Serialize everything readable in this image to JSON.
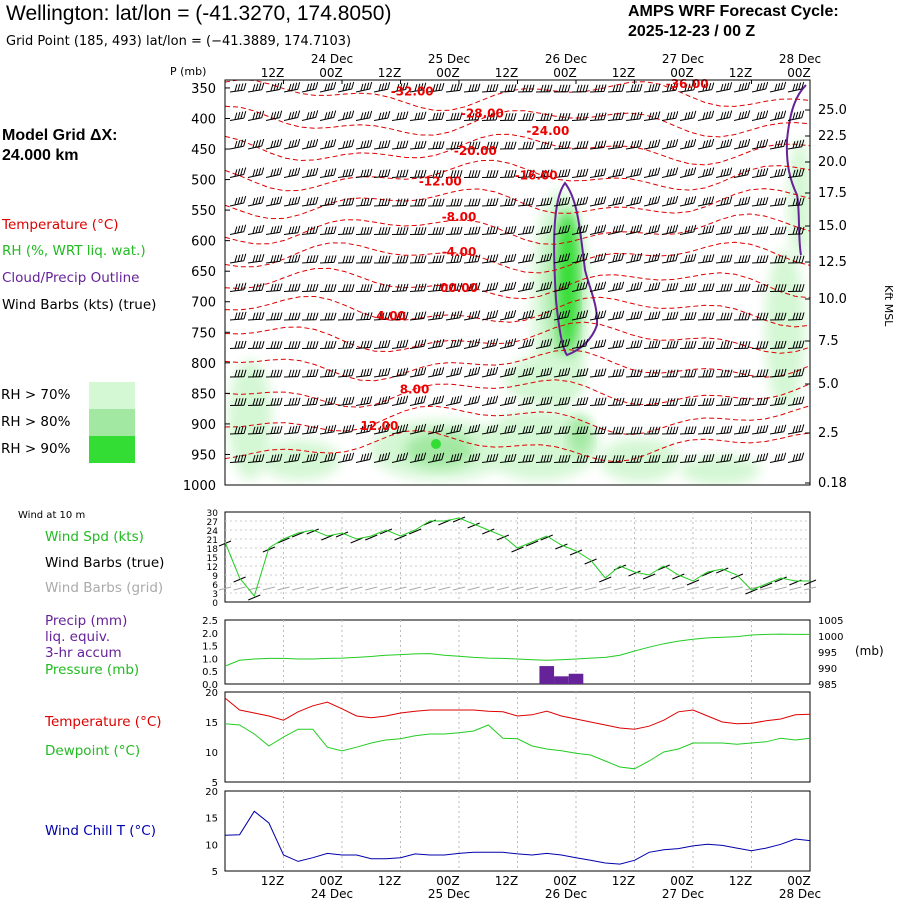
{
  "header": {
    "title": "Wellington:  lat/lon = (-41.3270, 174.8050)",
    "grid_point": "Grid Point (185, 493) lat/lon = (−41.3889, 174.7103)",
    "cycle_label": "AMPS WRF Forecast Cycle:",
    "cycle_value": "2025-12-23 / 00  Z"
  },
  "legend": {
    "model_grid_label": "Model Grid ΔX:",
    "model_grid_value": " 24.000 km",
    "temperature": "Temperature (°C)",
    "rh": "RH (%, WRT liq. wat.)",
    "cloud": "Cloud/Precip Outline",
    "wind_barbs": "Wind Barbs (kts) (true)",
    "rh_keys": [
      "RH > 70%",
      "RH > 80%",
      "RH > 90%"
    ],
    "rh_colors": [
      "#d4f7d4",
      "#a2e8a2",
      "#33dd33"
    ]
  },
  "colors": {
    "temperature": "#dd0000",
    "rh_line": "#22cc22",
    "cloud": "#662299",
    "wind_chill": "#0000aa",
    "barb_true": "#000000",
    "barb_grid": "#aaaaaa"
  },
  "chart_data": [
    {
      "type": "heatmap",
      "ylabel": "P (mb)",
      "y2label": "Kft MSL",
      "time_ticks": [
        "12Z",
        "00Z",
        "12Z",
        "00Z",
        "12Z",
        "00Z",
        "12Z",
        "00Z",
        "12Z",
        "00Z"
      ],
      "date_ticks": [
        "24 Dec",
        "25 Dec",
        "26 Dec",
        "27 Dec",
        "28 Dec"
      ],
      "pressure_ticks": [
        350,
        400,
        450,
        500,
        550,
        600,
        650,
        700,
        750,
        800,
        850,
        900,
        950,
        1000
      ],
      "height_ticks": [
        "25.0",
        "22.5",
        "20.0",
        "17.5",
        "15.0",
        "12.5",
        "10.0",
        "7.5",
        "5.0",
        "2.5",
        "0.18"
      ],
      "temp_contour_labels": [
        {
          "text": "-32.00",
          "t": 1.6,
          "p": 362
        },
        {
          "text": "-28.00",
          "t": 2.2,
          "p": 398
        },
        {
          "text": "-24.00",
          "t": 2.76,
          "p": 427
        },
        {
          "text": "-20.00",
          "t": 2.14,
          "p": 460
        },
        {
          "text": "-16.00",
          "t": 2.66,
          "p": 500
        },
        {
          "text": "-12.00",
          "t": 1.84,
          "p": 510
        },
        {
          "text": "-8.00",
          "t": 2.0,
          "p": 568
        },
        {
          "text": "-4.00",
          "t": 2.0,
          "p": 625
        },
        {
          "text": "00.00",
          "t": 2.0,
          "p": 684
        },
        {
          "text": "4.00",
          "t": 1.42,
          "p": 730
        },
        {
          "text": "8.00",
          "t": 1.62,
          "p": 850
        },
        {
          "text": "12.00",
          "t": 1.32,
          "p": 910
        },
        {
          "text": "-36.00",
          "t": 3.95,
          "p": 350
        }
      ]
    },
    {
      "type": "line",
      "title": "Wind at 10 m",
      "legend": [
        "Wind Spd (kts)",
        "Wind Barbs (true)",
        "Wind Barbs (grid)"
      ],
      "yticks": [
        0,
        3,
        6,
        9,
        12,
        15,
        18,
        21,
        24,
        27,
        30
      ],
      "ylim": [
        0,
        30
      ],
      "x": [
        0,
        0.125,
        0.25,
        0.375,
        0.5,
        0.625,
        0.75,
        0.875,
        1,
        1.125,
        1.25,
        1.375,
        1.5,
        1.625,
        1.75,
        1.875,
        2,
        2.125,
        2.25,
        2.375,
        2.5,
        2.625,
        2.75,
        2.875,
        3,
        3.125,
        3.25,
        3.375,
        3.5,
        3.625,
        3.75,
        3.875,
        4,
        4.125,
        4.25,
        4.375,
        4.5,
        4.625,
        4.75,
        4.875,
        5
      ],
      "series": [
        {
          "name": "Wind Spd (kts)",
          "values": [
            20,
            8,
            2,
            18,
            21,
            23,
            24,
            22,
            23,
            21,
            22,
            24,
            22,
            24,
            27,
            27,
            28,
            26,
            24,
            22,
            18,
            20,
            22,
            19,
            17,
            14,
            8,
            12,
            10,
            9,
            12,
            9,
            7,
            10,
            11,
            9,
            4,
            6,
            8,
            7,
            7
          ]
        }
      ]
    },
    {
      "type": "bar",
      "legend": [
        "Precip (mm)",
        "liq. equiv.",
        "3-hr accum",
        "Pressure (mb)"
      ],
      "yticks": [
        "0.0",
        "0.5",
        "1.0",
        "1.5",
        "2.0",
        "2.5"
      ],
      "ylim": [
        0,
        2.5
      ],
      "y2ticks": [
        985,
        990,
        995,
        1000,
        1005
      ],
      "y2label": "(mb)",
      "x_precip": [
        2.75,
        2.875,
        3.0
      ],
      "precip": [
        0.7,
        0.3,
        0.4
      ],
      "x": [
        0,
        0.125,
        0.25,
        0.375,
        0.5,
        0.625,
        0.75,
        0.875,
        1,
        1.125,
        1.25,
        1.375,
        1.5,
        1.625,
        1.75,
        1.875,
        2,
        2.125,
        2.25,
        2.375,
        2.5,
        2.625,
        2.75,
        2.875,
        3,
        3.125,
        3.25,
        3.375,
        3.5,
        3.625,
        3.75,
        3.875,
        4,
        4.125,
        4.25,
        4.375,
        4.5,
        4.625,
        4.75,
        4.875,
        5
      ],
      "pressure": [
        990.6,
        992.4,
        992.8,
        993.0,
        993.0,
        992.8,
        992.8,
        993.0,
        993.1,
        993.3,
        993.6,
        994.0,
        994.2,
        994.4,
        994.5,
        994.0,
        993.7,
        993.3,
        993.1,
        993.0,
        992.8,
        992.6,
        992.4,
        992.6,
        992.8,
        993.1,
        993.3,
        994.0,
        995.3,
        996.5,
        997.6,
        998.4,
        999.0,
        999.4,
        999.6,
        999.8,
        1000.3,
        1000.5,
        1000.6,
        1000.5,
        1000.5
      ]
    },
    {
      "type": "line",
      "legend": [
        "Temperature (°C)",
        "Dewpoint (°C)"
      ],
      "yticks": [
        5,
        10,
        15,
        20
      ],
      "ylim": [
        5,
        20
      ],
      "x": [
        0,
        0.125,
        0.25,
        0.375,
        0.5,
        0.625,
        0.75,
        0.875,
        1,
        1.125,
        1.25,
        1.375,
        1.5,
        1.625,
        1.75,
        1.875,
        2,
        2.125,
        2.25,
        2.375,
        2.5,
        2.625,
        2.75,
        2.875,
        3,
        3.125,
        3.25,
        3.375,
        3.5,
        3.625,
        3.75,
        3.875,
        4,
        4.125,
        4.25,
        4.375,
        4.5,
        4.625,
        4.75,
        4.875,
        5
      ],
      "series": [
        {
          "name": "Temperature (°C)",
          "values": [
            19,
            17,
            16.5,
            16,
            15.3,
            16.7,
            17.7,
            18.3,
            17.2,
            16,
            15.7,
            16,
            16.5,
            16.8,
            17,
            17,
            17,
            17,
            16.8,
            16.7,
            16,
            16.2,
            16.8,
            16,
            15.5,
            15,
            14.5,
            14,
            13.8,
            14.3,
            15.3,
            16.7,
            17,
            16,
            15,
            14.7,
            14.8,
            15.2,
            15.5,
            16.2,
            16.3
          ]
        },
        {
          "name": "Dewpoint (°C)",
          "values": [
            14.7,
            14.5,
            13,
            11,
            12.5,
            13.8,
            13.8,
            10.8,
            10.2,
            10.8,
            11.5,
            12,
            12.2,
            12.7,
            13,
            13,
            13.2,
            13.5,
            14.5,
            12.3,
            12.2,
            11,
            10.5,
            10.2,
            9.8,
            9.5,
            8.5,
            7.5,
            7.2,
            8.5,
            10,
            10.5,
            11.5,
            11.5,
            11.5,
            11.3,
            11.5,
            11.7,
            12.3,
            12,
            12.3
          ]
        }
      ]
    },
    {
      "type": "line",
      "legend": [
        "Wind Chill T (°C)"
      ],
      "yticks": [
        5,
        10,
        15,
        20
      ],
      "ylim": [
        5,
        20
      ],
      "x": [
        0,
        0.125,
        0.25,
        0.375,
        0.5,
        0.625,
        0.75,
        0.875,
        1,
        1.125,
        1.25,
        1.375,
        1.5,
        1.625,
        1.75,
        1.875,
        2,
        2.125,
        2.25,
        2.375,
        2.5,
        2.625,
        2.75,
        2.875,
        3,
        3.125,
        3.25,
        3.375,
        3.5,
        3.625,
        3.75,
        3.875,
        4,
        4.125,
        4.25,
        4.375,
        4.5,
        4.625,
        4.75,
        4.875,
        5
      ],
      "series": [
        {
          "name": "Wind Chill T (°C)",
          "values": [
            11.7,
            11.8,
            16.2,
            14,
            8,
            6.8,
            7.5,
            8.3,
            8,
            8,
            7.3,
            7.3,
            7.5,
            8.2,
            8,
            8,
            8.3,
            8.5,
            8.5,
            8.5,
            8.2,
            8,
            8.3,
            8,
            7.5,
            7,
            6.5,
            6.3,
            7,
            8.5,
            9,
            9.2,
            9.7,
            10,
            9.8,
            9.3,
            8.8,
            9.3,
            10,
            11,
            10.7
          ]
        }
      ]
    }
  ]
}
